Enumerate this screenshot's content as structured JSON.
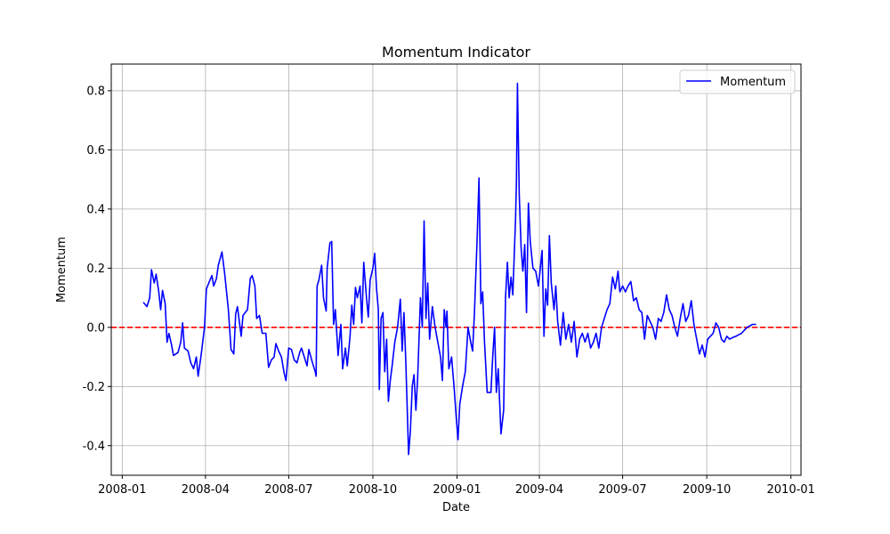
{
  "chart_data": {
    "type": "line",
    "title": "Momentum Indicator",
    "xlabel": "Date",
    "ylabel": "Momentum",
    "x_ticks": [
      "2008-01",
      "2008-04",
      "2008-07",
      "2008-10",
      "2009-01",
      "2009-04",
      "2009-07",
      "2009-10",
      "2010-01"
    ],
    "y_ticks": [
      -0.4,
      -0.2,
      0.0,
      0.2,
      0.4,
      0.6,
      0.8
    ],
    "xlim": [
      "2007-12-20",
      "2010-01-12"
    ],
    "ylim": [
      -0.5,
      0.89
    ],
    "grid": true,
    "legend": "upper right",
    "reference_line": {
      "y": 0.0,
      "color": "#ff0000",
      "style": "dashed"
    },
    "series": [
      {
        "name": "Momentum",
        "color": "#0000ff",
        "points": [
          [
            "2008-01-24",
            0.085
          ],
          [
            "2008-01-28",
            0.07
          ],
          [
            "2008-01-31",
            0.1
          ],
          [
            "2008-02-02",
            0.195
          ],
          [
            "2008-02-05",
            0.15
          ],
          [
            "2008-02-07",
            0.18
          ],
          [
            "2008-02-10",
            0.12
          ],
          [
            "2008-02-12",
            0.06
          ],
          [
            "2008-02-14",
            0.125
          ],
          [
            "2008-02-17",
            0.08
          ],
          [
            "2008-02-19",
            -0.05
          ],
          [
            "2008-02-21",
            -0.02
          ],
          [
            "2008-02-24",
            -0.06
          ],
          [
            "2008-02-26",
            -0.095
          ],
          [
            "2008-03-02",
            -0.085
          ],
          [
            "2008-03-05",
            -0.05
          ],
          [
            "2008-03-07",
            0.015
          ],
          [
            "2008-03-09",
            -0.07
          ],
          [
            "2008-03-13",
            -0.08
          ],
          [
            "2008-03-16",
            -0.12
          ],
          [
            "2008-03-19",
            -0.14
          ],
          [
            "2008-03-22",
            -0.1
          ],
          [
            "2008-03-24",
            -0.165
          ],
          [
            "2008-03-27",
            -0.1
          ],
          [
            "2008-03-31",
            0.0
          ],
          [
            "2008-04-02",
            0.13
          ],
          [
            "2008-04-06",
            0.16
          ],
          [
            "2008-04-08",
            0.175
          ],
          [
            "2008-04-10",
            0.14
          ],
          [
            "2008-04-13",
            0.165
          ],
          [
            "2008-04-15",
            0.21
          ],
          [
            "2008-04-19",
            0.255
          ],
          [
            "2008-04-22",
            0.18
          ],
          [
            "2008-04-26",
            0.06
          ],
          [
            "2008-04-29",
            -0.075
          ],
          [
            "2008-05-02",
            -0.09
          ],
          [
            "2008-05-04",
            0.045
          ],
          [
            "2008-05-06",
            0.07
          ],
          [
            "2008-05-10",
            -0.03
          ],
          [
            "2008-05-12",
            0.04
          ],
          [
            "2008-05-17",
            0.06
          ],
          [
            "2008-05-20",
            0.165
          ],
          [
            "2008-05-22",
            0.175
          ],
          [
            "2008-05-25",
            0.14
          ],
          [
            "2008-05-27",
            0.03
          ],
          [
            "2008-05-30",
            0.04
          ],
          [
            "2008-06-02",
            -0.02
          ],
          [
            "2008-06-06",
            -0.02
          ],
          [
            "2008-06-09",
            -0.135
          ],
          [
            "2008-06-12",
            -0.11
          ],
          [
            "2008-06-15",
            -0.1
          ],
          [
            "2008-06-17",
            -0.055
          ],
          [
            "2008-06-20",
            -0.08
          ],
          [
            "2008-06-23",
            -0.1
          ],
          [
            "2008-06-26",
            -0.155
          ],
          [
            "2008-06-28",
            -0.18
          ],
          [
            "2008-07-01",
            -0.07
          ],
          [
            "2008-07-04",
            -0.075
          ],
          [
            "2008-07-07",
            -0.11
          ],
          [
            "2008-07-10",
            -0.12
          ],
          [
            "2008-07-13",
            -0.085
          ],
          [
            "2008-07-15",
            -0.07
          ],
          [
            "2008-07-18",
            -0.1
          ],
          [
            "2008-07-21",
            -0.13
          ],
          [
            "2008-07-23",
            -0.075
          ],
          [
            "2008-07-27",
            -0.12
          ],
          [
            "2008-07-30",
            -0.15
          ],
          [
            "2008-07-31",
            -0.165
          ],
          [
            "2008-08-01",
            0.14
          ],
          [
            "2008-08-03",
            0.16
          ],
          [
            "2008-08-06",
            0.21
          ],
          [
            "2008-08-08",
            0.1
          ],
          [
            "2008-08-11",
            0.055
          ],
          [
            "2008-08-12",
            0.2
          ],
          [
            "2008-08-15",
            0.285
          ],
          [
            "2008-08-17",
            0.29
          ],
          [
            "2008-08-19",
            0.01
          ],
          [
            "2008-08-21",
            0.06
          ],
          [
            "2008-08-24",
            -0.095
          ],
          [
            "2008-08-27",
            0.01
          ],
          [
            "2008-08-29",
            -0.14
          ],
          [
            "2008-09-01",
            -0.07
          ],
          [
            "2008-09-03",
            -0.13
          ],
          [
            "2008-09-06",
            -0.03
          ],
          [
            "2008-09-08",
            0.075
          ],
          [
            "2008-09-10",
            0.01
          ],
          [
            "2008-09-12",
            0.135
          ],
          [
            "2008-09-14",
            0.1
          ],
          [
            "2008-09-17",
            0.14
          ],
          [
            "2008-09-19",
            0.015
          ],
          [
            "2008-09-21",
            0.22
          ],
          [
            "2008-09-24",
            0.1
          ],
          [
            "2008-09-26",
            0.035
          ],
          [
            "2008-09-28",
            0.16
          ],
          [
            "2008-10-01",
            0.2
          ],
          [
            "2008-10-03",
            0.25
          ],
          [
            "2008-10-05",
            0.13
          ],
          [
            "2008-10-07",
            0.06
          ],
          [
            "2008-10-08",
            -0.21
          ],
          [
            "2008-10-10",
            0.03
          ],
          [
            "2008-10-12",
            0.05
          ],
          [
            "2008-10-14",
            -0.15
          ],
          [
            "2008-10-16",
            -0.04
          ],
          [
            "2008-10-18",
            -0.25
          ],
          [
            "2008-10-20",
            -0.18
          ],
          [
            "2008-10-22",
            -0.13
          ],
          [
            "2008-10-25",
            -0.05
          ],
          [
            "2008-10-28",
            0.0
          ],
          [
            "2008-10-31",
            0.095
          ],
          [
            "2008-11-02",
            -0.08
          ],
          [
            "2008-11-04",
            0.05
          ],
          [
            "2008-11-06",
            -0.12
          ],
          [
            "2008-11-09",
            -0.43
          ],
          [
            "2008-11-11",
            -0.35
          ],
          [
            "2008-11-13",
            -0.2
          ],
          [
            "2008-11-15",
            -0.16
          ],
          [
            "2008-11-17",
            -0.28
          ],
          [
            "2008-11-19",
            -0.17
          ],
          [
            "2008-11-22",
            0.1
          ],
          [
            "2008-11-24",
            0.0
          ],
          [
            "2008-11-26",
            0.36
          ],
          [
            "2008-11-28",
            0.03
          ],
          [
            "2008-11-30",
            0.15
          ],
          [
            "2008-12-02",
            -0.04
          ],
          [
            "2008-12-05",
            0.07
          ],
          [
            "2008-12-08",
            0.0
          ],
          [
            "2008-12-11",
            -0.05
          ],
          [
            "2008-12-14",
            -0.1
          ],
          [
            "2008-12-16",
            -0.18
          ],
          [
            "2008-12-18",
            0.06
          ],
          [
            "2008-12-20",
            0.0
          ],
          [
            "2008-12-21",
            0.055
          ],
          [
            "2008-12-23",
            -0.14
          ],
          [
            "2008-12-26",
            -0.1
          ],
          [
            "2008-12-29",
            -0.21
          ],
          [
            "2008-12-31",
            -0.3
          ],
          [
            "2009-01-02",
            -0.38
          ],
          [
            "2009-01-04",
            -0.26
          ],
          [
            "2009-01-07",
            -0.2
          ],
          [
            "2009-01-10",
            -0.15
          ],
          [
            "2009-01-13",
            0.0
          ],
          [
            "2009-01-16",
            -0.05
          ],
          [
            "2009-01-18",
            -0.08
          ],
          [
            "2009-01-20",
            0.05
          ],
          [
            "2009-01-23",
            0.3
          ],
          [
            "2009-01-25",
            0.505
          ],
          [
            "2009-01-27",
            0.08
          ],
          [
            "2009-01-29",
            0.12
          ],
          [
            "2009-01-31",
            -0.05
          ],
          [
            "2009-02-03",
            -0.22
          ],
          [
            "2009-02-07",
            -0.22
          ],
          [
            "2009-02-09",
            -0.1
          ],
          [
            "2009-02-11",
            0.0
          ],
          [
            "2009-02-13",
            -0.22
          ],
          [
            "2009-02-15",
            -0.14
          ],
          [
            "2009-02-18",
            -0.36
          ],
          [
            "2009-02-21",
            -0.28
          ],
          [
            "2009-02-23",
            0.1
          ],
          [
            "2009-02-25",
            0.22
          ],
          [
            "2009-02-27",
            0.1
          ],
          [
            "2009-03-01",
            0.17
          ],
          [
            "2009-03-03",
            0.11
          ],
          [
            "2009-03-06",
            0.37
          ],
          [
            "2009-03-07",
            0.5
          ],
          [
            "2009-03-08",
            0.825
          ],
          [
            "2009-03-10",
            0.45
          ],
          [
            "2009-03-12",
            0.27
          ],
          [
            "2009-03-14",
            0.19
          ],
          [
            "2009-03-16",
            0.28
          ],
          [
            "2009-03-18",
            0.05
          ],
          [
            "2009-03-20",
            0.42
          ],
          [
            "2009-03-22",
            0.29
          ],
          [
            "2009-03-25",
            0.2
          ],
          [
            "2009-03-28",
            0.19
          ],
          [
            "2009-03-31",
            0.14
          ],
          [
            "2009-04-02",
            0.2
          ],
          [
            "2009-04-04",
            0.26
          ],
          [
            "2009-04-06",
            -0.03
          ],
          [
            "2009-04-08",
            0.13
          ],
          [
            "2009-04-10",
            0.075
          ],
          [
            "2009-04-12",
            0.31
          ],
          [
            "2009-04-14",
            0.15
          ],
          [
            "2009-04-17",
            0.06
          ],
          [
            "2009-04-19",
            0.14
          ],
          [
            "2009-04-21",
            0.02
          ],
          [
            "2009-04-24",
            -0.06
          ],
          [
            "2009-04-27",
            0.05
          ],
          [
            "2009-04-30",
            -0.04
          ],
          [
            "2009-05-03",
            0.01
          ],
          [
            "2009-05-06",
            -0.05
          ],
          [
            "2009-05-09",
            0.02
          ],
          [
            "2009-05-12",
            -0.1
          ],
          [
            "2009-05-15",
            -0.04
          ],
          [
            "2009-05-18",
            -0.02
          ],
          [
            "2009-05-21",
            -0.05
          ],
          [
            "2009-05-24",
            -0.02
          ],
          [
            "2009-05-27",
            -0.07
          ],
          [
            "2009-05-30",
            -0.05
          ],
          [
            "2009-06-02",
            -0.02
          ],
          [
            "2009-06-05",
            -0.07
          ],
          [
            "2009-06-08",
            0.0
          ],
          [
            "2009-06-11",
            0.03
          ],
          [
            "2009-06-14",
            0.06
          ],
          [
            "2009-06-17",
            0.08
          ],
          [
            "2009-06-20",
            0.17
          ],
          [
            "2009-06-23",
            0.13
          ],
          [
            "2009-06-26",
            0.19
          ],
          [
            "2009-06-28",
            0.12
          ],
          [
            "2009-07-01",
            0.14
          ],
          [
            "2009-07-04",
            0.12
          ],
          [
            "2009-07-07",
            0.14
          ],
          [
            "2009-07-10",
            0.155
          ],
          [
            "2009-07-13",
            0.09
          ],
          [
            "2009-07-16",
            0.1
          ],
          [
            "2009-07-19",
            0.06
          ],
          [
            "2009-07-22",
            0.05
          ],
          [
            "2009-07-25",
            -0.04
          ],
          [
            "2009-07-28",
            0.04
          ],
          [
            "2009-07-31",
            0.02
          ],
          [
            "2009-08-03",
            0.0
          ],
          [
            "2009-08-06",
            -0.04
          ],
          [
            "2009-08-09",
            0.03
          ],
          [
            "2009-08-12",
            0.02
          ],
          [
            "2009-08-15",
            0.05
          ],
          [
            "2009-08-18",
            0.11
          ],
          [
            "2009-08-21",
            0.06
          ],
          [
            "2009-08-24",
            0.04
          ],
          [
            "2009-08-27",
            0.0
          ],
          [
            "2009-08-30",
            -0.03
          ],
          [
            "2009-09-02",
            0.03
          ],
          [
            "2009-09-05",
            0.08
          ],
          [
            "2009-09-08",
            0.02
          ],
          [
            "2009-09-11",
            0.04
          ],
          [
            "2009-09-14",
            0.09
          ],
          [
            "2009-09-17",
            0.01
          ],
          [
            "2009-09-20",
            -0.04
          ],
          [
            "2009-09-23",
            -0.09
          ],
          [
            "2009-09-26",
            -0.06
          ],
          [
            "2009-09-29",
            -0.1
          ],
          [
            "2009-10-02",
            -0.04
          ],
          [
            "2009-10-05",
            -0.03
          ],
          [
            "2009-10-08",
            -0.02
          ],
          [
            "2009-10-11",
            0.015
          ],
          [
            "2009-10-14",
            0.0
          ],
          [
            "2009-10-17",
            -0.04
          ],
          [
            "2009-10-20",
            -0.05
          ],
          [
            "2009-10-23",
            -0.03
          ],
          [
            "2009-10-26",
            -0.04
          ],
          [
            "2009-10-29",
            -0.035
          ],
          [
            "2009-11-02",
            -0.03
          ],
          [
            "2009-11-05",
            -0.025
          ],
          [
            "2009-11-08",
            -0.02
          ],
          [
            "2009-11-11",
            -0.01
          ],
          [
            "2009-11-14",
            0.0
          ],
          [
            "2009-11-17",
            0.005
          ],
          [
            "2009-11-20",
            0.01
          ],
          [
            "2009-11-24",
            0.01
          ]
        ]
      }
    ]
  }
}
